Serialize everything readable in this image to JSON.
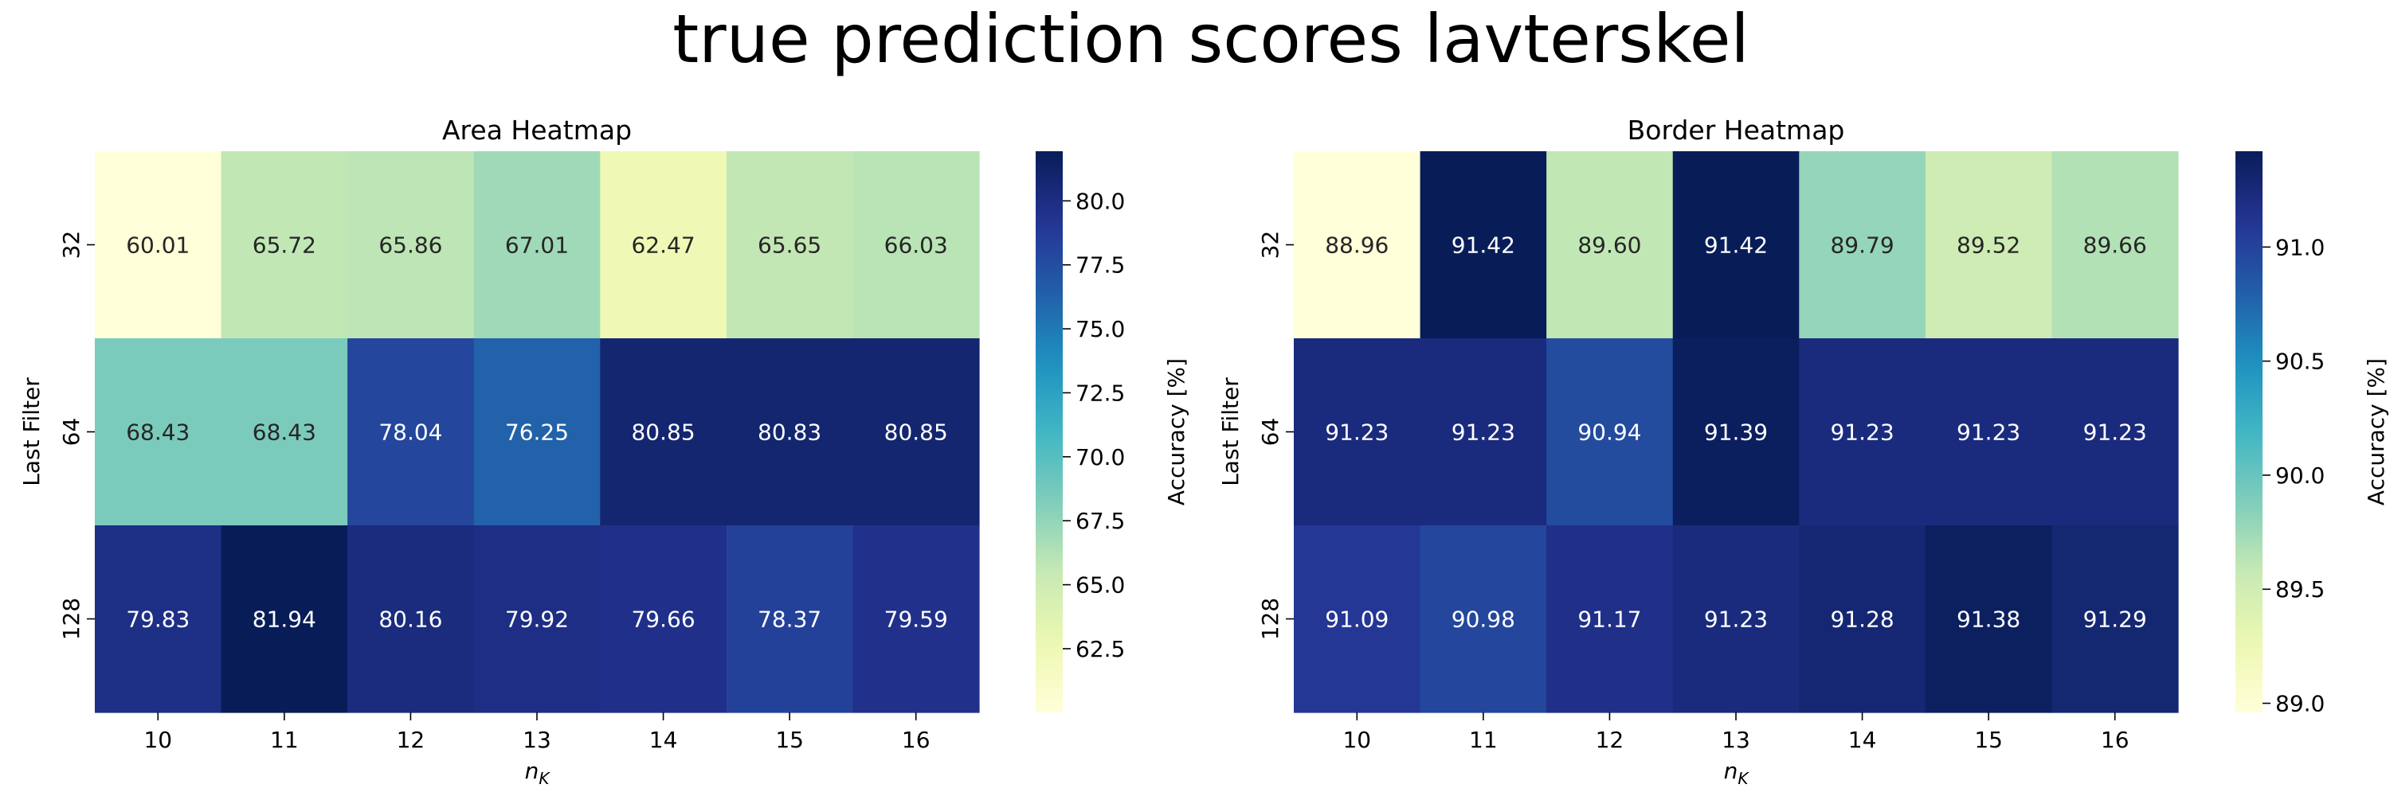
{
  "figure": {
    "suptitle": "true prediction scores lavterskel"
  },
  "chart_data": [
    {
      "type": "heatmap",
      "title": "Area Heatmap",
      "xlabel": "n",
      "xlabel_sub": "K",
      "ylabel": "Last Filter",
      "x": [
        "10",
        "11",
        "12",
        "13",
        "14",
        "15",
        "16"
      ],
      "y": [
        "32",
        "64",
        "128"
      ],
      "values": [
        [
          60.01,
          65.72,
          65.86,
          67.01,
          62.47,
          65.65,
          66.03
        ],
        [
          68.43,
          68.43,
          78.04,
          76.25,
          80.85,
          80.83,
          80.85
        ],
        [
          79.83,
          81.94,
          80.16,
          79.92,
          79.66,
          78.37,
          79.59
        ]
      ],
      "colorbar": {
        "label": "Accuracy [%]",
        "range": [
          60.01,
          81.94
        ],
        "ticks": [
          "62.5",
          "65.0",
          "67.5",
          "70.0",
          "72.5",
          "75.0",
          "77.5",
          "80.0"
        ]
      },
      "colormap": "YlGnBu"
    },
    {
      "type": "heatmap",
      "title": "Border Heatmap",
      "xlabel": "n",
      "xlabel_sub": "K",
      "ylabel": "Last Filter",
      "x": [
        "10",
        "11",
        "12",
        "13",
        "14",
        "15",
        "16"
      ],
      "y": [
        "32",
        "64",
        "128"
      ],
      "values": [
        [
          88.96,
          91.42,
          89.6,
          91.42,
          89.79,
          89.52,
          89.66
        ],
        [
          91.23,
          91.23,
          90.94,
          91.39,
          91.23,
          91.23,
          91.23
        ],
        [
          91.09,
          90.98,
          91.17,
          91.23,
          91.28,
          91.38,
          91.29
        ]
      ],
      "colorbar": {
        "label": "Accuracy [%]",
        "range": [
          88.96,
          91.42
        ],
        "ticks": [
          "89.0",
          "89.5",
          "90.0",
          "90.5",
          "91.0"
        ]
      },
      "colormap": "YlGnBu"
    }
  ]
}
